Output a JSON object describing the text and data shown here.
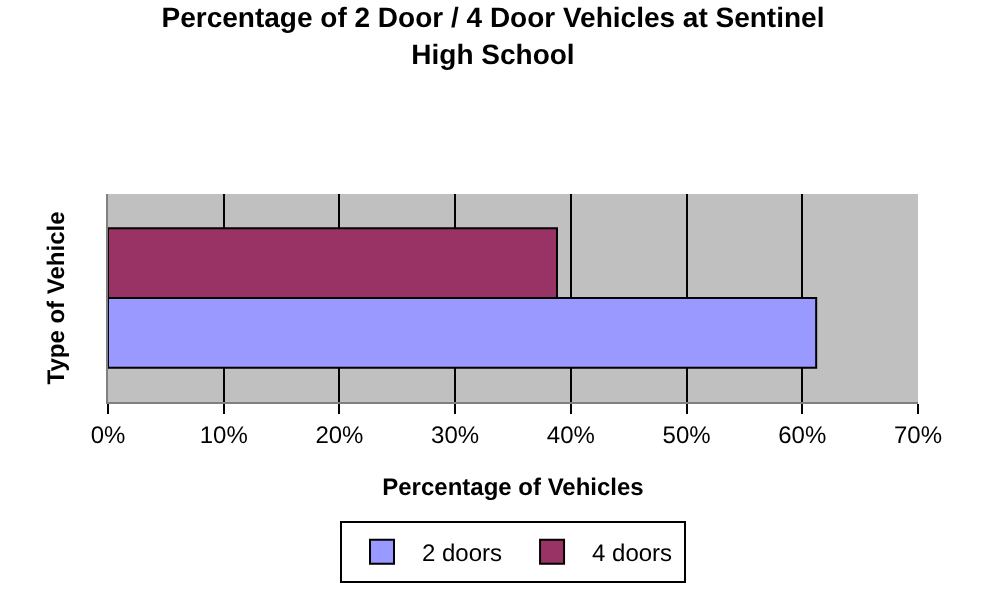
{
  "chart_data": {
    "type": "bar",
    "orientation": "horizontal",
    "title": "Percentage of 2 Door / 4 Door Vehicles at Sentinel High School",
    "xlabel": "Percentage of Vehicles",
    "ylabel": "Type of Vehicle",
    "categories": [
      null
    ],
    "series": [
      {
        "name": "2 doors",
        "color": "#9999ff",
        "values": [
          61.2
        ]
      },
      {
        "name": "4 doors",
        "color": "#993366",
        "values": [
          38.8
        ]
      }
    ],
    "xlim": [
      0,
      70
    ],
    "xticks": [
      {
        "value": 0,
        "label": "0%"
      },
      {
        "value": 10,
        "label": "10%"
      },
      {
        "value": 20,
        "label": "20%"
      },
      {
        "value": 30,
        "label": "30%"
      },
      {
        "value": 40,
        "label": "40%"
      },
      {
        "value": 50,
        "label": "50%"
      },
      {
        "value": 60,
        "label": "60%"
      },
      {
        "value": 70,
        "label": "70%"
      }
    ],
    "grid": "x",
    "legend": "bottom"
  }
}
